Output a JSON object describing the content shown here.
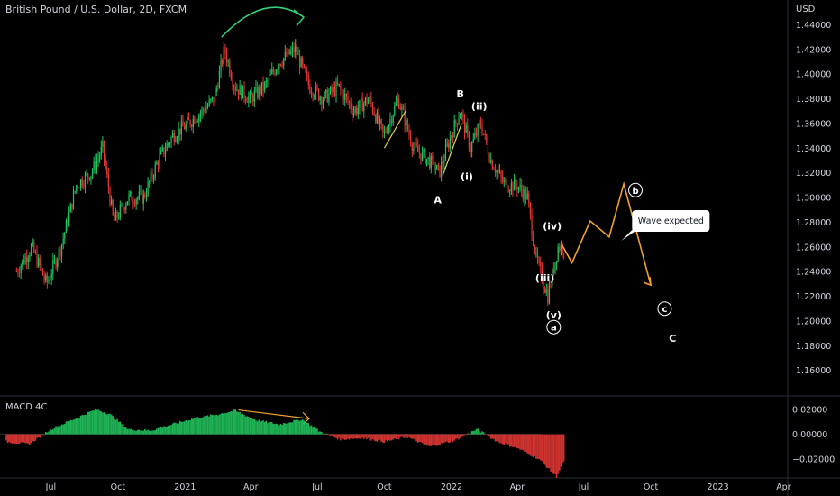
{
  "header": {
    "title": "British Pound / U.S. Dollar, 2D, FXCM",
    "currency": "USD"
  },
  "colors": {
    "background": "#000000",
    "up": "#22c55e",
    "down": "#e53935",
    "projection": "#f0a030",
    "arrow": "#33d17a",
    "wedge": "#e6d55a",
    "grid": "#2a2e39",
    "text": "#d1d4dc"
  },
  "chart_data": [
    {
      "type": "candlestick",
      "title": "British Pound / U.S. Dollar, 2D, FXCM",
      "ylabel": "USD",
      "ylim": [
        1.14,
        1.46
      ],
      "x_tick_labels": [
        "Jul",
        "Oct",
        "2021",
        "Apr",
        "Jul",
        "Oct",
        "2022",
        "Apr",
        "Jul",
        "Oct",
        "2023",
        "Apr"
      ],
      "y_tick_labels": [
        "1.44000",
        "1.42000",
        "1.40000",
        "1.38000",
        "1.36000",
        "1.34000",
        "1.32000",
        "1.30000",
        "1.28000",
        "1.26000",
        "1.24000",
        "1.22000",
        "1.20000",
        "1.18000",
        "1.16000"
      ],
      "price_path": [
        {
          "date": "2020-05-15",
          "price": 1.24
        },
        {
          "date": "2020-06-05",
          "price": 1.26
        },
        {
          "date": "2020-06-25",
          "price": 1.23
        },
        {
          "date": "2020-07-15",
          "price": 1.26
        },
        {
          "date": "2020-08-05",
          "price": 1.31
        },
        {
          "date": "2020-08-25",
          "price": 1.32
        },
        {
          "date": "2020-09-10",
          "price": 1.34
        },
        {
          "date": "2020-09-25",
          "price": 1.28
        },
        {
          "date": "2020-10-15",
          "price": 1.3
        },
        {
          "date": "2020-11-05",
          "price": 1.3
        },
        {
          "date": "2020-11-25",
          "price": 1.33
        },
        {
          "date": "2020-12-15",
          "price": 1.35
        },
        {
          "date": "2021-01-05",
          "price": 1.36
        },
        {
          "date": "2021-01-25",
          "price": 1.37
        },
        {
          "date": "2021-02-10",
          "price": 1.38
        },
        {
          "date": "2021-02-24",
          "price": 1.42
        },
        {
          "date": "2021-03-10",
          "price": 1.39
        },
        {
          "date": "2021-03-31",
          "price": 1.38
        },
        {
          "date": "2021-04-20",
          "price": 1.39
        },
        {
          "date": "2021-05-10",
          "price": 1.41
        },
        {
          "date": "2021-06-01",
          "price": 1.42
        },
        {
          "date": "2021-06-20",
          "price": 1.39
        },
        {
          "date": "2021-07-10",
          "price": 1.38
        },
        {
          "date": "2021-07-30",
          "price": 1.39
        },
        {
          "date": "2021-08-20",
          "price": 1.37
        },
        {
          "date": "2021-09-10",
          "price": 1.38
        },
        {
          "date": "2021-09-30",
          "price": 1.35
        },
        {
          "date": "2021-10-20",
          "price": 1.38
        },
        {
          "date": "2021-11-10",
          "price": 1.34
        },
        {
          "date": "2021-12-01",
          "price": 1.33
        },
        {
          "date": "2021-12-15",
          "price": 1.32
        },
        {
          "date": "2021-12-31",
          "price": 1.35
        },
        {
          "date": "2022-01-13",
          "price": 1.37
        },
        {
          "date": "2022-01-27",
          "price": 1.34
        },
        {
          "date": "2022-02-10",
          "price": 1.36
        },
        {
          "date": "2022-02-24",
          "price": 1.33
        },
        {
          "date": "2022-03-15",
          "price": 1.31
        },
        {
          "date": "2022-04-01",
          "price": 1.31
        },
        {
          "date": "2022-04-15",
          "price": 1.3
        },
        {
          "date": "2022-04-27",
          "price": 1.25
        },
        {
          "date": "2022-05-13",
          "price": 1.22
        },
        {
          "date": "2022-05-27",
          "price": 1.26
        },
        {
          "date": "2022-06-05",
          "price": 1.26
        }
      ],
      "projection_path": [
        {
          "date": "2022-06-15",
          "price": 1.247
        },
        {
          "date": "2022-07-10",
          "price": 1.281
        },
        {
          "date": "2022-08-05",
          "price": 1.268
        },
        {
          "date": "2022-08-25",
          "price": 1.311
        },
        {
          "date": "2022-10-01",
          "price": 1.229
        }
      ],
      "wave_labels": [
        {
          "text": "A",
          "date": "2021-12-13",
          "price": 1.298,
          "circled": false
        },
        {
          "text": "B",
          "date": "2022-01-13",
          "price": 1.384,
          "circled": false
        },
        {
          "text": "(ii)",
          "date": "2022-02-08",
          "price": 1.374,
          "circled": false
        },
        {
          "text": "(i)",
          "date": "2022-01-22",
          "price": 1.317,
          "circled": false
        },
        {
          "text": "(iv)",
          "date": "2022-05-19",
          "price": 1.277,
          "circled": false
        },
        {
          "text": "(iii)",
          "date": "2022-05-09",
          "price": 1.235,
          "circled": false
        },
        {
          "text": "(v)",
          "date": "2022-05-21",
          "price": 1.205,
          "circled": false
        },
        {
          "text": "a",
          "date": "2022-05-21",
          "price": 1.195,
          "circled": true
        },
        {
          "text": "b",
          "date": "2022-09-10",
          "price": 1.306,
          "circled": true
        },
        {
          "text": "c",
          "date": "2022-10-20",
          "price": 1.21,
          "circled": true
        },
        {
          "text": "C",
          "date": "2022-10-31",
          "price": 1.186,
          "circled": false
        }
      ],
      "callout": {
        "text": "Wave expected",
        "date": "2022-10-31",
        "price": 1.281
      }
    },
    {
      "type": "histogram",
      "title": "MACD 4C",
      "ylim": [
        -0.035,
        0.03
      ],
      "y_tick_labels": [
        "0.02000",
        "0.00000",
        "−0.02000"
      ],
      "series": [
        {
          "date": "2020-05-01",
          "value": -0.006
        },
        {
          "date": "2020-06-01",
          "value": -0.008
        },
        {
          "date": "2020-07-01",
          "value": 0.004
        },
        {
          "date": "2020-08-01",
          "value": 0.012
        },
        {
          "date": "2020-09-01",
          "value": 0.02
        },
        {
          "date": "2020-09-20",
          "value": 0.016
        },
        {
          "date": "2020-10-15",
          "value": 0.004
        },
        {
          "date": "2020-11-15",
          "value": 0.003
        },
        {
          "date": "2020-12-15",
          "value": 0.008
        },
        {
          "date": "2021-01-15",
          "value": 0.013
        },
        {
          "date": "2021-02-15",
          "value": 0.016
        },
        {
          "date": "2021-03-10",
          "value": 0.019
        },
        {
          "date": "2021-04-10",
          "value": 0.011
        },
        {
          "date": "2021-05-10",
          "value": 0.008
        },
        {
          "date": "2021-06-10",
          "value": 0.012
        },
        {
          "date": "2021-07-05",
          "value": 0.002
        },
        {
          "date": "2021-08-01",
          "value": -0.004
        },
        {
          "date": "2021-09-01",
          "value": -0.003
        },
        {
          "date": "2021-10-01",
          "value": -0.006
        },
        {
          "date": "2021-11-01",
          "value": -0.002
        },
        {
          "date": "2021-12-01",
          "value": -0.01
        },
        {
          "date": "2022-01-05",
          "value": -0.005
        },
        {
          "date": "2022-02-05",
          "value": 0.004
        },
        {
          "date": "2022-03-05",
          "value": -0.006
        },
        {
          "date": "2022-04-01",
          "value": -0.011
        },
        {
          "date": "2022-05-01",
          "value": -0.02
        },
        {
          "date": "2022-05-25",
          "value": -0.034
        },
        {
          "date": "2022-06-05",
          "value": -0.02
        }
      ]
    }
  ]
}
